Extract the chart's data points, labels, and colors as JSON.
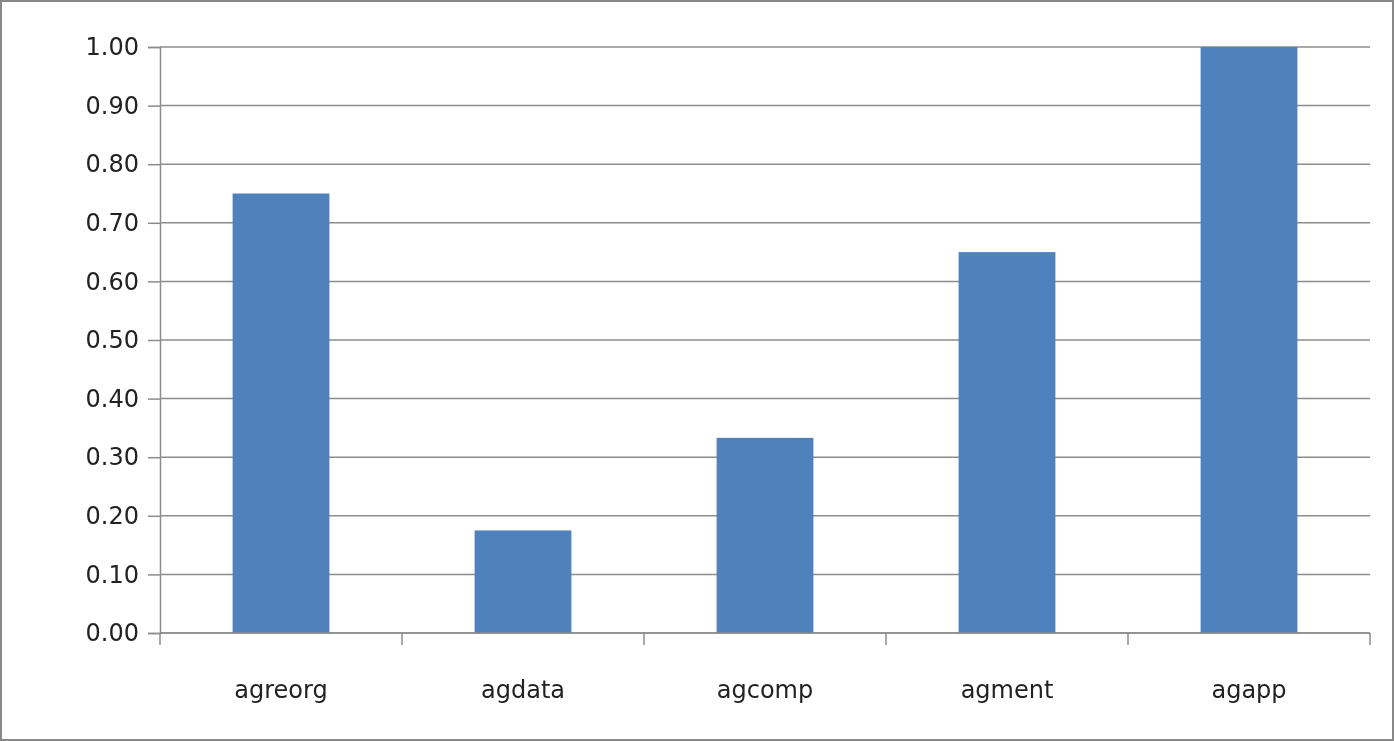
{
  "chart_data": {
    "type": "bar",
    "categories": [
      "agreorg",
      "agdata",
      "agcomp",
      "agment",
      "agapp"
    ],
    "values": [
      0.75,
      0.175,
      0.333,
      0.65,
      1.0
    ],
    "color": "#4f81bd",
    "ylim": [
      0,
      1
    ],
    "yticks": [
      {
        "value": 0,
        "label": "0.00"
      },
      {
        "value": 0.1,
        "label": "0.10"
      },
      {
        "value": 0.2,
        "label": "0.20"
      },
      {
        "value": 0.3,
        "label": "0.30"
      },
      {
        "value": 0.4,
        "label": "0.40"
      },
      {
        "value": 0.5,
        "label": "0.50"
      },
      {
        "value": 0.6,
        "label": "0.60"
      },
      {
        "value": 0.7,
        "label": "0.70"
      },
      {
        "value": 0.8,
        "label": "0.80"
      },
      {
        "value": 0.9,
        "label": "0.90"
      },
      {
        "value": 1,
        "label": "1.00"
      }
    ],
    "grid": "y"
  }
}
